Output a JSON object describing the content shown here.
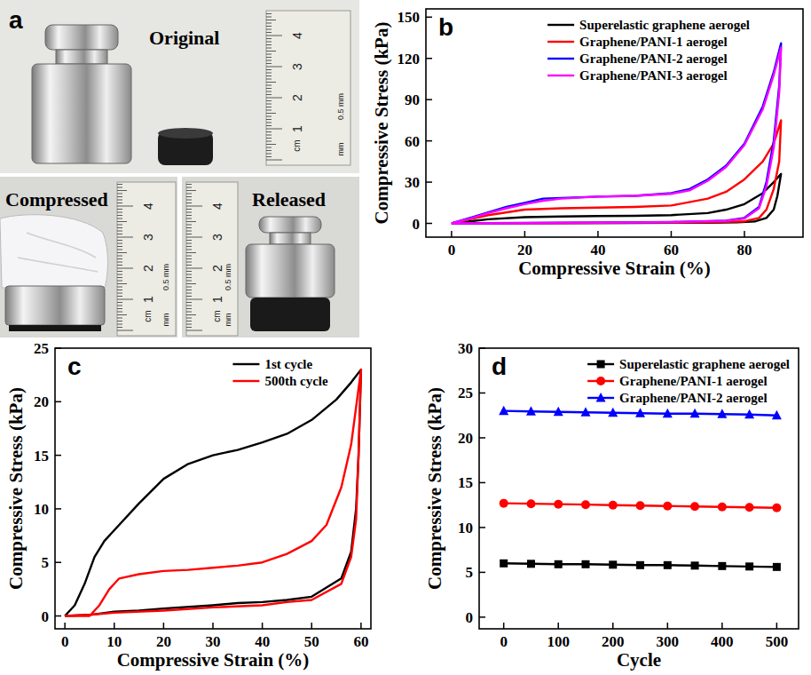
{
  "photo_panel": {
    "panel_label": "a",
    "captions": [
      "Original",
      "Compressed",
      "Released"
    ],
    "ruler": {
      "numbers": [
        "1",
        "2",
        "3",
        "4"
      ],
      "unit": "cm",
      "minor_unit": "mm",
      "note": "0.5 mm"
    }
  },
  "chart_data": [
    {
      "type": "line",
      "panel_label": "b",
      "xlabel": "Compressive Strain (%)",
      "ylabel": "Compressive Stress (kPa)",
      "xlim": [
        -7,
        96
      ],
      "ylim": [
        -10,
        156
      ],
      "xticks": [
        0,
        20,
        40,
        60,
        80
      ],
      "yticks": [
        0,
        30,
        60,
        90,
        120,
        150
      ],
      "grid": false,
      "legend": "upper right",
      "series": [
        {
          "name": "Superelastic graphene aerogel",
          "color": "#000000",
          "line_style": "solid",
          "x": [
            0,
            5,
            10,
            20,
            30,
            40,
            50,
            60,
            70,
            75,
            80,
            85,
            88,
            90,
            89,
            88,
            86,
            83,
            78,
            70,
            50,
            30,
            10,
            0
          ],
          "values": [
            0,
            1.5,
            3,
            4.5,
            5,
            5.3,
            5.5,
            6,
            7.5,
            10,
            14,
            22,
            30,
            36,
            20,
            10,
            4,
            1.5,
            0.8,
            0.5,
            0.3,
            0.2,
            0.1,
            0
          ]
        },
        {
          "name": "Graphene/PANI-1 aerogel",
          "color": "#ff0000",
          "line_style": "solid",
          "x": [
            0,
            5,
            10,
            20,
            30,
            40,
            50,
            60,
            70,
            75,
            80,
            85,
            88,
            90,
            89.5,
            88,
            86,
            84,
            80,
            70,
            50,
            30,
            10,
            0
          ],
          "values": [
            0,
            3,
            6,
            10,
            11,
            11.5,
            12,
            13,
            18,
            23,
            32,
            45,
            58,
            75,
            45,
            25,
            10,
            4,
            1.5,
            0.8,
            0.5,
            0.3,
            0.1,
            0
          ]
        },
        {
          "name": "Graphene/PANI-2 aerogel",
          "color": "#0000ff",
          "line_style": "solid",
          "x": [
            0,
            5,
            10,
            15,
            20,
            25,
            30,
            40,
            50,
            60,
            65,
            70,
            75,
            80,
            85,
            88,
            90,
            89.5,
            88,
            86,
            84,
            80,
            75,
            60,
            40,
            20,
            0
          ],
          "values": [
            0,
            4,
            8,
            12,
            15,
            18,
            18.5,
            19.5,
            20,
            22,
            25,
            32,
            42,
            58,
            85,
            110,
            131,
            100,
            60,
            30,
            12,
            4,
            2,
            1,
            0.6,
            0.3,
            0
          ]
        },
        {
          "name": "Graphene/PANI-3 aerogel",
          "color": "#ff00ff",
          "line_style": "solid",
          "x": [
            0,
            5,
            10,
            15,
            20,
            25,
            30,
            40,
            50,
            60,
            65,
            70,
            75,
            80,
            85,
            88,
            90,
            89.5,
            88,
            86,
            84,
            80,
            75,
            60,
            40,
            20,
            0
          ],
          "values": [
            0,
            3.5,
            7.5,
            11,
            14,
            16.5,
            18,
            19.5,
            20,
            21.5,
            24,
            31,
            41,
            57,
            83,
            108,
            128,
            95,
            55,
            27,
            11,
            3.5,
            1.8,
            0.9,
            0.5,
            0.2,
            0
          ]
        }
      ]
    },
    {
      "type": "line",
      "panel_label": "c",
      "xlabel": "Compressive Strain (%)",
      "ylabel": "Compressive Stress (kPa)",
      "xlim": [
        -2,
        62
      ],
      "ylim": [
        -1.2,
        25
      ],
      "xticks": [
        0,
        10,
        20,
        30,
        40,
        50,
        60
      ],
      "yticks": [
        0,
        5,
        10,
        15,
        20,
        25
      ],
      "grid": false,
      "legend": "upper right",
      "series": [
        {
          "name": "1st cycle",
          "color": "#000000",
          "line_style": "solid",
          "x": [
            0,
            2,
            4,
            6,
            8,
            10,
            15,
            20,
            25,
            30,
            35,
            40,
            45,
            50,
            55,
            58,
            60,
            59.5,
            59,
            58,
            56,
            50,
            45,
            40,
            35,
            30,
            20,
            15,
            10,
            5,
            0
          ],
          "values": [
            0,
            1,
            3,
            5.5,
            7,
            8,
            10.5,
            12.8,
            14.2,
            15,
            15.5,
            16.2,
            17,
            18.3,
            20.2,
            21.8,
            23,
            15,
            10,
            6,
            3.5,
            1.8,
            1.5,
            1.3,
            1.2,
            1,
            0.7,
            0.5,
            0.4,
            0.1,
            0
          ]
        },
        {
          "name": "500th cycle",
          "color": "#ff0000",
          "line_style": "solid",
          "x": [
            0,
            5,
            7,
            9,
            11,
            15,
            20,
            25,
            30,
            35,
            40,
            45,
            50,
            53,
            56,
            58,
            60,
            59.5,
            59,
            58,
            56,
            50,
            45,
            40,
            30,
            20,
            10,
            5,
            0
          ],
          "values": [
            0,
            0,
            1,
            2.5,
            3.5,
            3.9,
            4.2,
            4.3,
            4.5,
            4.7,
            5,
            5.8,
            7,
            8.5,
            12,
            16,
            23,
            15,
            9,
            5.5,
            3,
            1.5,
            1.3,
            1,
            0.8,
            0.5,
            0.3,
            0.1,
            0
          ]
        }
      ]
    },
    {
      "type": "line",
      "panel_label": "d",
      "xlabel": "Cycle",
      "ylabel": "Compressive Stress (kPa)",
      "xlim": [
        -45,
        540
      ],
      "ylim": [
        -1.3,
        30
      ],
      "xticks": [
        0,
        100,
        200,
        300,
        400,
        500
      ],
      "yticks": [
        0,
        5,
        10,
        15,
        20,
        25,
        30
      ],
      "grid": false,
      "legend": "upper right",
      "x": [
        0,
        50,
        100,
        150,
        200,
        250,
        300,
        350,
        400,
        450,
        500
      ],
      "series": [
        {
          "name": "Superelastic graphene aerogel",
          "color": "#000000",
          "marker": "square",
          "line_style": "solid",
          "values": [
            6.0,
            5.95,
            5.9,
            5.9,
            5.85,
            5.8,
            5.8,
            5.75,
            5.7,
            5.65,
            5.6
          ]
        },
        {
          "name": "Graphene/PANI-1 aerogel",
          "color": "#ff0000",
          "marker": "circle",
          "line_style": "solid",
          "values": [
            12.7,
            12.65,
            12.6,
            12.55,
            12.5,
            12.45,
            12.4,
            12.35,
            12.3,
            12.25,
            12.2
          ]
        },
        {
          "name": "Graphene/PANI-2 aerogel",
          "color": "#0000ff",
          "marker": "triangle",
          "line_style": "solid",
          "values": [
            23.0,
            22.95,
            22.9,
            22.85,
            22.8,
            22.75,
            22.7,
            22.7,
            22.65,
            22.6,
            22.5
          ]
        }
      ]
    }
  ]
}
